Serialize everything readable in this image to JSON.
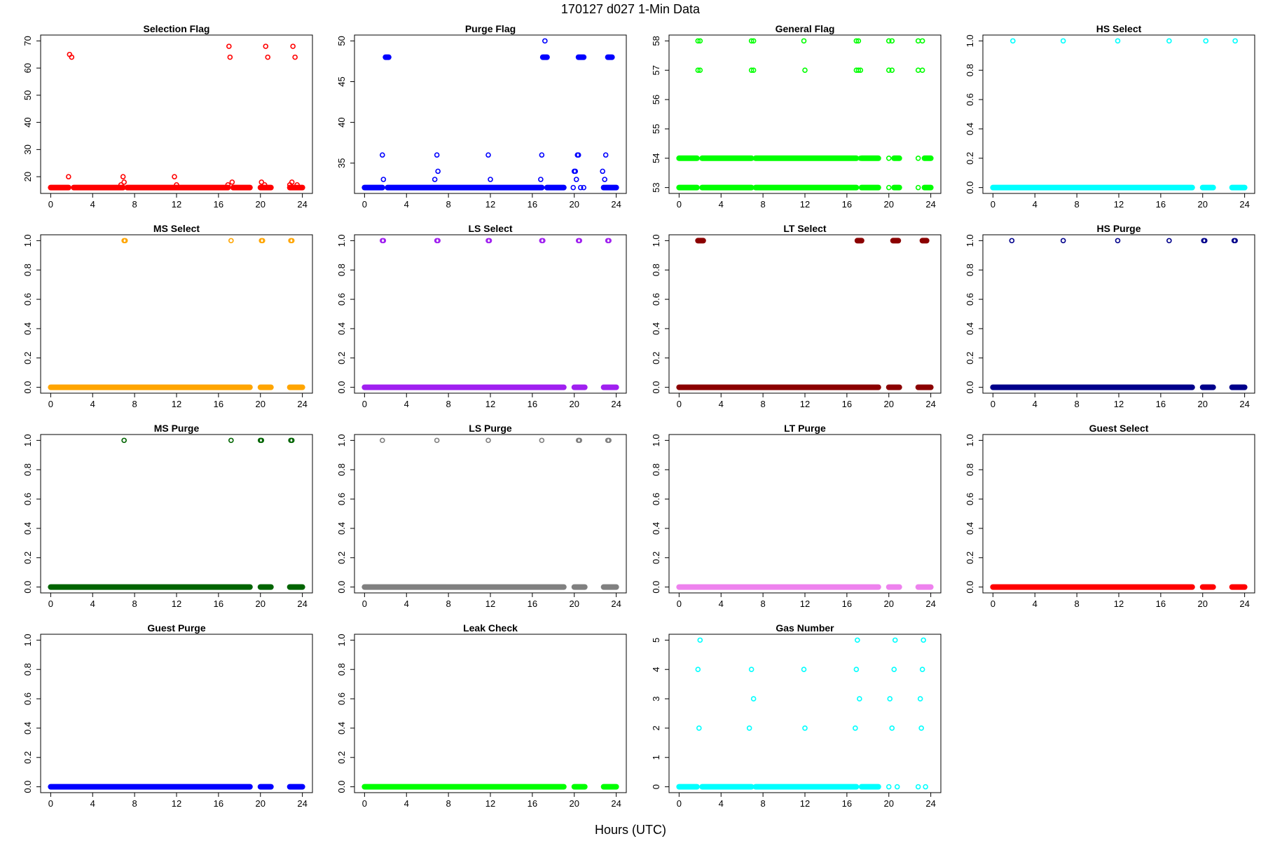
{
  "figure": {
    "title": "170127   d027   1-Min Data",
    "xlabel": "Hours (UTC)"
  },
  "chart_data": [
    {
      "type": "scatter",
      "title": "Selection Flag",
      "color": "#ff0000",
      "xlim": [
        0,
        24
      ],
      "ylim": [
        16,
        70
      ],
      "xticks": [
        0,
        4,
        8,
        12,
        16,
        20,
        24
      ],
      "yticks": [
        20,
        30,
        40,
        50,
        60,
        70
      ],
      "grid": false,
      "segments": [
        [
          0,
          1.7,
          16
        ],
        [
          2.2,
          6.9,
          16
        ],
        [
          7.3,
          16.9,
          16
        ],
        [
          17.4,
          19.0,
          16
        ],
        [
          20.0,
          21.0,
          16
        ],
        [
          22.8,
          24.0,
          16
        ]
      ],
      "points": [
        [
          1.7,
          20
        ],
        [
          1.8,
          65
        ],
        [
          2.0,
          64
        ],
        [
          6.7,
          17
        ],
        [
          6.9,
          20
        ],
        [
          7.0,
          18
        ],
        [
          11.8,
          20
        ],
        [
          12.0,
          17
        ],
        [
          16.9,
          17
        ],
        [
          17.0,
          68
        ],
        [
          17.1,
          64
        ],
        [
          17.3,
          18
        ],
        [
          20.1,
          18
        ],
        [
          20.2,
          16
        ],
        [
          20.4,
          17
        ],
        [
          20.5,
          68
        ],
        [
          20.7,
          64
        ],
        [
          22.8,
          17
        ],
        [
          23.0,
          18
        ],
        [
          23.1,
          68
        ],
        [
          23.3,
          64
        ],
        [
          23.5,
          17
        ]
      ]
    },
    {
      "type": "scatter",
      "title": "Purge Flag",
      "color": "#0000ff",
      "xlim": [
        0,
        24
      ],
      "ylim": [
        32,
        50
      ],
      "xticks": [
        0,
        4,
        8,
        12,
        16,
        20,
        24
      ],
      "yticks": [
        35,
        40,
        45,
        50
      ],
      "grid": false,
      "segments": [
        [
          0,
          1.7,
          32
        ],
        [
          2.2,
          16.9,
          32
        ],
        [
          17.4,
          19.0,
          32
        ],
        [
          22.8,
          24.0,
          32
        ],
        [
          2.0,
          2.3,
          48
        ],
        [
          17.0,
          17.4,
          48
        ],
        [
          20.4,
          20.9,
          48
        ],
        [
          23.2,
          23.6,
          48
        ]
      ],
      "points": [
        [
          1.7,
          36
        ],
        [
          1.8,
          33
        ],
        [
          6.7,
          33
        ],
        [
          6.9,
          36
        ],
        [
          7.0,
          34
        ],
        [
          11.8,
          36
        ],
        [
          12.0,
          33
        ],
        [
          16.8,
          33
        ],
        [
          16.9,
          36
        ],
        [
          17.2,
          50
        ],
        [
          19.9,
          32
        ],
        [
          20.0,
          34
        ],
        [
          20.1,
          34
        ],
        [
          20.2,
          33
        ],
        [
          20.3,
          36
        ],
        [
          20.4,
          36
        ],
        [
          20.6,
          32
        ],
        [
          20.9,
          32
        ],
        [
          22.7,
          34
        ],
        [
          22.9,
          33
        ],
        [
          23.0,
          36
        ],
        [
          23.1,
          32
        ],
        [
          23.3,
          32
        ]
      ]
    },
    {
      "type": "scatter",
      "title": "General Flag",
      "color": "#00ff00",
      "xlim": [
        0,
        24
      ],
      "ylim": [
        53,
        58
      ],
      "xticks": [
        0,
        4,
        8,
        12,
        16,
        20,
        24
      ],
      "yticks": [
        53,
        54,
        55,
        56,
        57,
        58
      ],
      "grid": false,
      "segments": [
        [
          0,
          1.7,
          53
        ],
        [
          2.2,
          6.9,
          53
        ],
        [
          7.3,
          16.9,
          53
        ],
        [
          17.4,
          19.0,
          53
        ],
        [
          0,
          1.7,
          54
        ],
        [
          2.2,
          6.9,
          54
        ],
        [
          7.3,
          16.9,
          54
        ],
        [
          17.4,
          19.0,
          54
        ],
        [
          20.5,
          21.0,
          53
        ],
        [
          20.5,
          21.0,
          54
        ],
        [
          23.4,
          24.0,
          53
        ],
        [
          23.4,
          24.0,
          54
        ]
      ],
      "points": [
        [
          1.8,
          58
        ],
        [
          2.0,
          58
        ],
        [
          1.8,
          57
        ],
        [
          2.0,
          57
        ],
        [
          6.9,
          58
        ],
        [
          7.1,
          58
        ],
        [
          6.9,
          57
        ],
        [
          7.1,
          57
        ],
        [
          11.9,
          58
        ],
        [
          12.0,
          57
        ],
        [
          16.9,
          58
        ],
        [
          17.1,
          58
        ],
        [
          16.9,
          57
        ],
        [
          17.1,
          57
        ],
        [
          17.3,
          57
        ],
        [
          17.3,
          54
        ],
        [
          20.0,
          58
        ],
        [
          20.3,
          58
        ],
        [
          20.0,
          57
        ],
        [
          20.3,
          57
        ],
        [
          20.0,
          54
        ],
        [
          20.0,
          53
        ],
        [
          22.8,
          58
        ],
        [
          23.2,
          58
        ],
        [
          22.8,
          57
        ],
        [
          23.2,
          57
        ],
        [
          22.8,
          54
        ],
        [
          22.8,
          53
        ]
      ]
    },
    {
      "type": "scatter",
      "title": "HS Select",
      "color": "#00ffff",
      "xlim": [
        0,
        24
      ],
      "ylim": [
        0,
        1
      ],
      "xticks": [
        0,
        4,
        8,
        12,
        16,
        20,
        24
      ],
      "yticks": [
        0.0,
        0.2,
        0.4,
        0.6,
        0.8,
        1.0
      ],
      "grid": false,
      "segments": [
        [
          0,
          19.0,
          0
        ],
        [
          20.0,
          21.0,
          0
        ],
        [
          22.8,
          24.0,
          0
        ]
      ],
      "points": [
        [
          1.9,
          1
        ],
        [
          6.7,
          1
        ],
        [
          11.9,
          1
        ],
        [
          16.8,
          1
        ],
        [
          20.3,
          1
        ],
        [
          23.1,
          1
        ]
      ]
    },
    {
      "type": "scatter",
      "title": "MS Select",
      "color": "#ffa500",
      "xlim": [
        0,
        24
      ],
      "ylim": [
        0,
        1
      ],
      "xticks": [
        0,
        4,
        8,
        12,
        16,
        20,
        24
      ],
      "yticks": [
        0.0,
        0.2,
        0.4,
        0.6,
        0.8,
        1.0
      ],
      "grid": false,
      "segments": [
        [
          0,
          19.0,
          0
        ],
        [
          20.0,
          21.0,
          0
        ],
        [
          22.8,
          24.0,
          0
        ]
      ],
      "points": [
        [
          7.0,
          1
        ],
        [
          7.1,
          1
        ],
        [
          17.2,
          1
        ],
        [
          20.1,
          1
        ],
        [
          20.2,
          1
        ],
        [
          22.9,
          1
        ],
        [
          23.0,
          1
        ]
      ]
    },
    {
      "type": "scatter",
      "title": "LS Select",
      "color": "#a020f0",
      "xlim": [
        0,
        24
      ],
      "ylim": [
        0,
        1
      ],
      "xticks": [
        0,
        4,
        8,
        12,
        16,
        20,
        24
      ],
      "yticks": [
        0.0,
        0.2,
        0.4,
        0.6,
        0.8,
        1.0
      ],
      "grid": false,
      "segments": [
        [
          0,
          19.0,
          0
        ],
        [
          20.0,
          21.0,
          0
        ],
        [
          22.8,
          24.0,
          0
        ]
      ],
      "points": [
        [
          1.7,
          1
        ],
        [
          1.8,
          1
        ],
        [
          6.9,
          1
        ],
        [
          7.0,
          1
        ],
        [
          11.8,
          1
        ],
        [
          11.9,
          1
        ],
        [
          16.9,
          1
        ],
        [
          17.0,
          1
        ],
        [
          20.4,
          1
        ],
        [
          20.5,
          1
        ],
        [
          23.2,
          1
        ],
        [
          23.3,
          1
        ]
      ]
    },
    {
      "type": "scatter",
      "title": "LT Select",
      "color": "#8b0000",
      "xlim": [
        0,
        24
      ],
      "ylim": [
        0,
        1
      ],
      "xticks": [
        0,
        4,
        8,
        12,
        16,
        20,
        24
      ],
      "yticks": [
        0.0,
        0.2,
        0.4,
        0.6,
        0.8,
        1.0
      ],
      "grid": false,
      "segments": [
        [
          0,
          19.0,
          0
        ],
        [
          20.0,
          21.0,
          0
        ],
        [
          22.8,
          24.0,
          0
        ],
        [
          1.8,
          2.3,
          1
        ],
        [
          17.0,
          17.4,
          1
        ],
        [
          20.4,
          20.9,
          1
        ],
        [
          23.2,
          23.6,
          1
        ]
      ],
      "points": []
    },
    {
      "type": "scatter",
      "title": "HS Purge",
      "color": "#00008b",
      "xlim": [
        0,
        24
      ],
      "ylim": [
        0,
        1
      ],
      "xticks": [
        0,
        4,
        8,
        12,
        16,
        20,
        24
      ],
      "yticks": [
        0.0,
        0.2,
        0.4,
        0.6,
        0.8,
        1.0
      ],
      "grid": false,
      "segments": [
        [
          0,
          19.0,
          0
        ],
        [
          20.0,
          21.0,
          0
        ],
        [
          22.8,
          24.0,
          0
        ]
      ],
      "points": [
        [
          1.8,
          1
        ],
        [
          6.7,
          1
        ],
        [
          11.9,
          1
        ],
        [
          16.8,
          1
        ],
        [
          20.1,
          1
        ],
        [
          20.2,
          1
        ],
        [
          23.0,
          1
        ],
        [
          23.1,
          1
        ]
      ]
    },
    {
      "type": "scatter",
      "title": "MS Purge",
      "color": "#006400",
      "xlim": [
        0,
        24
      ],
      "ylim": [
        0,
        1
      ],
      "xticks": [
        0,
        4,
        8,
        12,
        16,
        20,
        24
      ],
      "yticks": [
        0.0,
        0.2,
        0.4,
        0.6,
        0.8,
        1.0
      ],
      "grid": false,
      "segments": [
        [
          0,
          19.0,
          0
        ],
        [
          20.0,
          21.0,
          0
        ],
        [
          22.8,
          24.0,
          0
        ]
      ],
      "points": [
        [
          7.0,
          1
        ],
        [
          17.2,
          1
        ],
        [
          20.0,
          1
        ],
        [
          20.1,
          1
        ],
        [
          22.9,
          1
        ],
        [
          23.0,
          1
        ]
      ]
    },
    {
      "type": "scatter",
      "title": "LS Purge",
      "color": "#808080",
      "xlim": [
        0,
        24
      ],
      "ylim": [
        0,
        1
      ],
      "xticks": [
        0,
        4,
        8,
        12,
        16,
        20,
        24
      ],
      "yticks": [
        0.0,
        0.2,
        0.4,
        0.6,
        0.8,
        1.0
      ],
      "grid": false,
      "segments": [
        [
          0,
          19.0,
          0
        ],
        [
          20.0,
          21.0,
          0
        ],
        [
          22.8,
          24.0,
          0
        ]
      ],
      "points": [
        [
          1.7,
          1
        ],
        [
          6.9,
          1
        ],
        [
          11.8,
          1
        ],
        [
          16.9,
          1
        ],
        [
          20.4,
          1
        ],
        [
          20.5,
          1
        ],
        [
          23.2,
          1
        ],
        [
          23.3,
          1
        ]
      ]
    },
    {
      "type": "scatter",
      "title": "LT Purge",
      "color": "#ee82ee",
      "xlim": [
        0,
        24
      ],
      "ylim": [
        0,
        1
      ],
      "xticks": [
        0,
        4,
        8,
        12,
        16,
        20,
        24
      ],
      "yticks": [
        0.0,
        0.2,
        0.4,
        0.6,
        0.8,
        1.0
      ],
      "grid": false,
      "segments": [
        [
          0,
          19.0,
          0
        ],
        [
          20.0,
          21.0,
          0
        ],
        [
          22.8,
          24.0,
          0
        ]
      ],
      "points": []
    },
    {
      "type": "scatter",
      "title": "Guest Select",
      "color": "#ff0000",
      "xlim": [
        0,
        24
      ],
      "ylim": [
        0,
        1
      ],
      "xticks": [
        0,
        4,
        8,
        12,
        16,
        20,
        24
      ],
      "yticks": [
        0.0,
        0.2,
        0.4,
        0.6,
        0.8,
        1.0
      ],
      "grid": false,
      "segments": [
        [
          0,
          19.0,
          0
        ],
        [
          20.0,
          21.0,
          0
        ],
        [
          22.8,
          24.0,
          0
        ]
      ],
      "points": []
    },
    {
      "type": "scatter",
      "title": "Guest Purge",
      "color": "#0000ff",
      "xlim": [
        0,
        24
      ],
      "ylim": [
        0,
        1
      ],
      "xticks": [
        0,
        4,
        8,
        12,
        16,
        20,
        24
      ],
      "yticks": [
        0.0,
        0.2,
        0.4,
        0.6,
        0.8,
        1.0
      ],
      "grid": false,
      "segments": [
        [
          0,
          19.0,
          0
        ],
        [
          20.0,
          21.0,
          0
        ],
        [
          22.8,
          24.0,
          0
        ]
      ],
      "points": []
    },
    {
      "type": "scatter",
      "title": "Leak Check",
      "color": "#00ff00",
      "xlim": [
        0,
        24
      ],
      "ylim": [
        0,
        1
      ],
      "xticks": [
        0,
        4,
        8,
        12,
        16,
        20,
        24
      ],
      "yticks": [
        0.0,
        0.2,
        0.4,
        0.6,
        0.8,
        1.0
      ],
      "grid": false,
      "segments": [
        [
          0,
          19.0,
          0
        ],
        [
          20.0,
          21.0,
          0
        ],
        [
          22.8,
          24.0,
          0
        ]
      ],
      "points": []
    },
    {
      "type": "scatter",
      "title": "Gas Number",
      "color": "#00ffff",
      "xlim": [
        0,
        24
      ],
      "ylim": [
        0,
        5
      ],
      "xticks": [
        0,
        4,
        8,
        12,
        16,
        20,
        24
      ],
      "yticks": [
        0,
        1,
        2,
        3,
        4,
        5
      ],
      "grid": false,
      "segments": [
        [
          0,
          1.7,
          0
        ],
        [
          2.2,
          6.9,
          0
        ],
        [
          7.3,
          16.9,
          0
        ],
        [
          17.4,
          19.0,
          0
        ]
      ],
      "points": [
        [
          1.8,
          4
        ],
        [
          1.9,
          2
        ],
        [
          2.0,
          5
        ],
        [
          6.7,
          2
        ],
        [
          6.9,
          4
        ],
        [
          7.1,
          3
        ],
        [
          11.9,
          4
        ],
        [
          12.0,
          2
        ],
        [
          16.8,
          2
        ],
        [
          16.9,
          4
        ],
        [
          17.0,
          5
        ],
        [
          17.2,
          3
        ],
        [
          20.0,
          0
        ],
        [
          20.1,
          3
        ],
        [
          20.3,
          2
        ],
        [
          20.5,
          4
        ],
        [
          20.6,
          5
        ],
        [
          20.8,
          0
        ],
        [
          22.8,
          0
        ],
        [
          23.0,
          3
        ],
        [
          23.1,
          2
        ],
        [
          23.2,
          4
        ],
        [
          23.3,
          5
        ],
        [
          23.5,
          0
        ]
      ]
    }
  ]
}
